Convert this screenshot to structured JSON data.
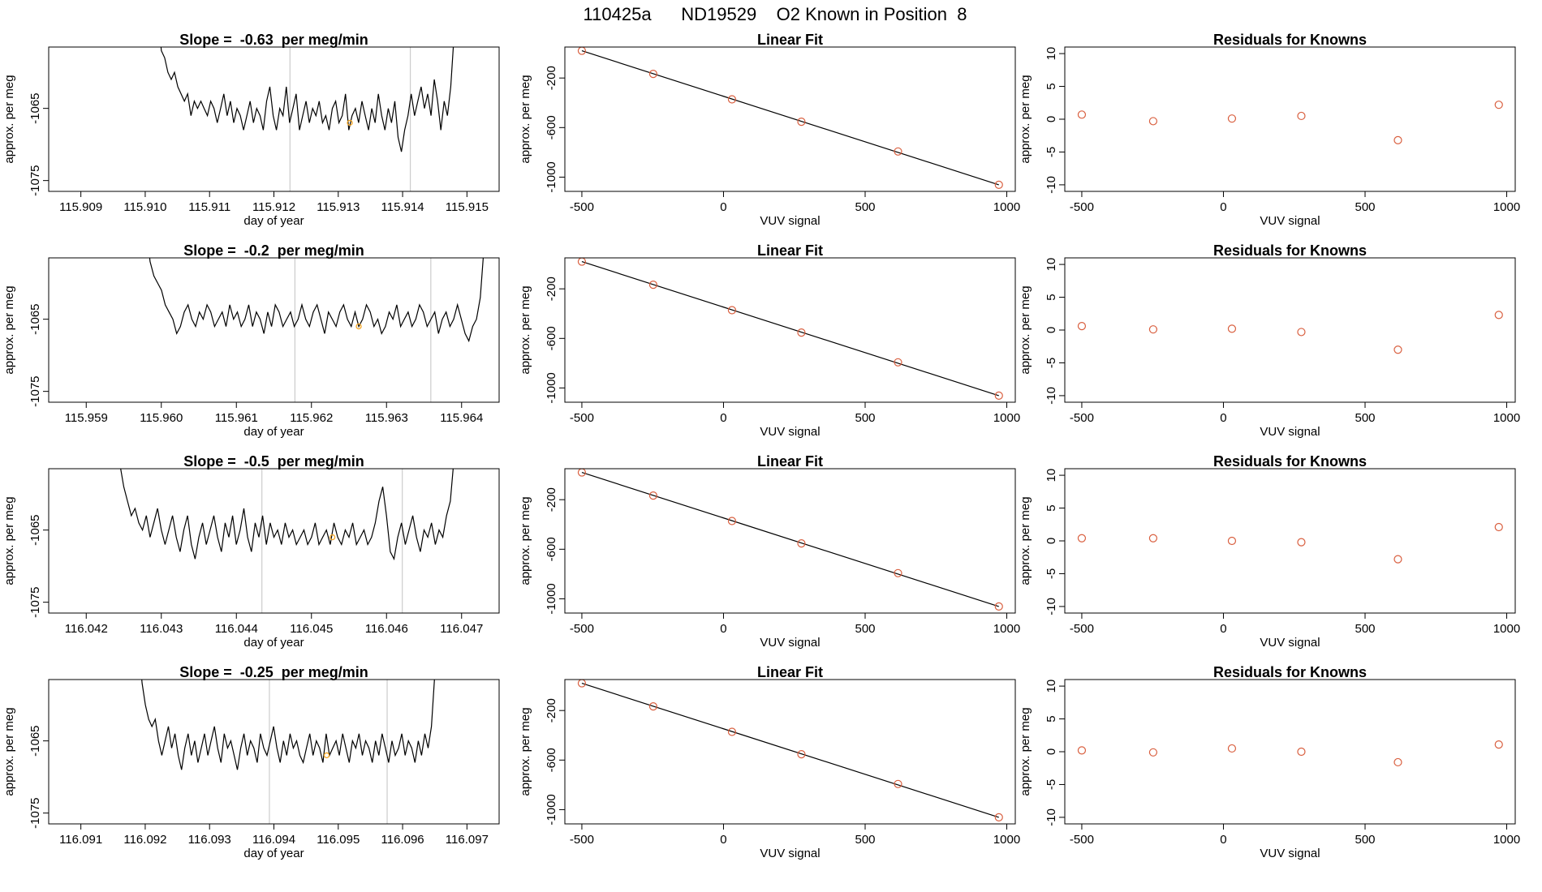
{
  "page_title": "110425a      ND19529    O2 Known in Position  8",
  "colors": {
    "trace": "#000000",
    "point": "#d95f3f",
    "highlight": "#f5a623",
    "vline": "#cccccc",
    "frame": "#000000"
  },
  "chart_data": [
    {
      "type": "line",
      "panel": "timeseries",
      "row": 1,
      "title": "Slope =  -0.63  per meg/min",
      "xlabel": "day of year",
      "ylabel": "approx. per meg",
      "xlim": [
        115.9085,
        115.9155
      ],
      "ylim": [
        -1076.5,
        -1056.5
      ],
      "xticks": [
        "115.909",
        "115.910",
        "115.911",
        "115.912",
        "115.913",
        "115.914",
        "115.915"
      ],
      "yticks": [
        "-1065",
        "-1075"
      ],
      "grid": false,
      "vlines": [
        115.91225,
        115.91412
      ],
      "highlight": {
        "x": 115.91318,
        "y": -1067
      },
      "trace": {
        "x_start": 115.9102,
        "x_end": 115.91485,
        "values": [
          -1052,
          -1057,
          -1058,
          -1060,
          -1061,
          -1060,
          -1062,
          -1063,
          -1064,
          -1063,
          -1066,
          -1064,
          -1065,
          -1064,
          -1065,
          -1066,
          -1064,
          -1065,
          -1067,
          -1065,
          -1063,
          -1066,
          -1064,
          -1067,
          -1065,
          -1066,
          -1068,
          -1066,
          -1064,
          -1067,
          -1065,
          -1066,
          -1068,
          -1064,
          -1062,
          -1066,
          -1068,
          -1065,
          -1066,
          -1062,
          -1067,
          -1065,
          -1063,
          -1068,
          -1066,
          -1064,
          -1067,
          -1065,
          -1066,
          -1064,
          -1067,
          -1066,
          -1068,
          -1065,
          -1064,
          -1067,
          -1066,
          -1063,
          -1068,
          -1066,
          -1065,
          -1067,
          -1064,
          -1066,
          -1068,
          -1065,
          -1067,
          -1063,
          -1066,
          -1068,
          -1065,
          -1067,
          -1064,
          -1069,
          -1071,
          -1068,
          -1066,
          -1063,
          -1066,
          -1064,
          -1062,
          -1065,
          -1063,
          -1066,
          -1061,
          -1064,
          -1068,
          -1064,
          -1066,
          -1062,
          -1055,
          -1052
        ]
      }
    },
    {
      "type": "line",
      "panel": "timeseries",
      "row": 2,
      "title": "Slope =  -0.2  per meg/min",
      "xlabel": "day of year",
      "ylabel": "approx. per meg",
      "xlim": [
        115.9585,
        115.9645
      ],
      "ylim": [
        -1076.5,
        -1056.5
      ],
      "xticks": [
        "115.959",
        "115.960",
        "115.961",
        "115.962",
        "115.963",
        "115.964"
      ],
      "yticks": [
        "-1065",
        "-1075"
      ],
      "grid": false,
      "vlines": [
        115.96178,
        115.96359
      ],
      "highlight": {
        "x": 115.96263,
        "y": -1066
      },
      "trace": {
        "x_start": 115.9598,
        "x_end": 115.96435,
        "values": [
          -1052,
          -1057,
          -1059,
          -1060,
          -1061,
          -1063,
          -1064,
          -1065,
          -1067,
          -1066,
          -1064,
          -1063,
          -1065,
          -1066,
          -1064,
          -1065,
          -1063,
          -1064,
          -1066,
          -1065,
          -1064,
          -1066,
          -1063,
          -1065,
          -1064,
          -1066,
          -1065,
          -1063,
          -1066,
          -1064,
          -1065,
          -1067,
          -1064,
          -1066,
          -1063,
          -1064,
          -1066,
          -1065,
          -1064,
          -1066,
          -1065,
          -1063,
          -1065,
          -1066,
          -1064,
          -1063,
          -1065,
          -1067,
          -1064,
          -1065,
          -1066,
          -1064,
          -1063,
          -1065,
          -1066,
          -1064,
          -1066,
          -1065,
          -1063,
          -1064,
          -1066,
          -1065,
          -1067,
          -1066,
          -1064,
          -1065,
          -1063,
          -1066,
          -1065,
          -1064,
          -1066,
          -1065,
          -1063,
          -1064,
          -1066,
          -1065,
          -1064,
          -1067,
          -1065,
          -1064,
          -1066,
          -1065,
          -1063,
          -1065,
          -1067,
          -1068,
          -1066,
          -1065,
          -1062,
          -1055,
          -1052
        ]
      }
    },
    {
      "type": "line",
      "panel": "timeseries",
      "row": 3,
      "title": "Slope =  -0.5  per meg/min",
      "xlabel": "day of year",
      "ylabel": "approx. per meg",
      "xlim": [
        116.0415,
        116.0475
      ],
      "ylim": [
        -1076.5,
        -1056.5
      ],
      "xticks": [
        "116.042",
        "116.043",
        "116.044",
        "116.045",
        "116.046",
        "116.047"
      ],
      "yticks": [
        "-1065",
        "-1075"
      ],
      "grid": false,
      "vlines": [
        116.04434,
        116.04621
      ],
      "highlight": {
        "x": 116.04528,
        "y": -1066
      },
      "trace": {
        "x_start": 116.0424,
        "x_end": 116.04695,
        "values": [
          -1052,
          -1056,
          -1059,
          -1061,
          -1063,
          -1062,
          -1064,
          -1065,
          -1063,
          -1066,
          -1064,
          -1062,
          -1065,
          -1067,
          -1065,
          -1063,
          -1066,
          -1068,
          -1065,
          -1063,
          -1067,
          -1069,
          -1066,
          -1064,
          -1067,
          -1065,
          -1063,
          -1066,
          -1068,
          -1064,
          -1066,
          -1063,
          -1067,
          -1065,
          -1062,
          -1066,
          -1068,
          -1064,
          -1066,
          -1063,
          -1067,
          -1064,
          -1066,
          -1065,
          -1067,
          -1064,
          -1066,
          -1065,
          -1067,
          -1066,
          -1065,
          -1067,
          -1066,
          -1064,
          -1067,
          -1066,
          -1065,
          -1067,
          -1064,
          -1066,
          -1067,
          -1065,
          -1066,
          -1064,
          -1067,
          -1066,
          -1065,
          -1067,
          -1066,
          -1064,
          -1061,
          -1059,
          -1063,
          -1068,
          -1069,
          -1066,
          -1064,
          -1067,
          -1065,
          -1063,
          -1066,
          -1068,
          -1065,
          -1066,
          -1064,
          -1067,
          -1065,
          -1066,
          -1063,
          -1061,
          -1055,
          -1052
        ]
      }
    },
    {
      "type": "line",
      "panel": "timeseries",
      "row": 4,
      "title": "Slope =  -0.25  per meg/min",
      "xlabel": "day of year",
      "ylabel": "approx. per meg",
      "xlim": [
        116.0905,
        116.0975
      ],
      "ylim": [
        -1076.5,
        -1056.5
      ],
      "xticks": [
        "116.091",
        "116.092",
        "116.093",
        "116.094",
        "116.095",
        "116.096",
        "116.097"
      ],
      "yticks": [
        "-1065",
        "-1075"
      ],
      "grid": false,
      "vlines": [
        116.09393,
        116.09576
      ],
      "highlight": {
        "x": 116.09482,
        "y": -1067
      },
      "trace": {
        "x_start": 116.0919,
        "x_end": 116.09655,
        "values": [
          -1052,
          -1057,
          -1060,
          -1062,
          -1063,
          -1062,
          -1065,
          -1067,
          -1065,
          -1063,
          -1066,
          -1064,
          -1067,
          -1069,
          -1066,
          -1064,
          -1067,
          -1065,
          -1068,
          -1066,
          -1064,
          -1067,
          -1065,
          -1063,
          -1066,
          -1068,
          -1064,
          -1066,
          -1065,
          -1067,
          -1069,
          -1066,
          -1064,
          -1067,
          -1065,
          -1066,
          -1068,
          -1064,
          -1066,
          -1067,
          -1065,
          -1063,
          -1066,
          -1068,
          -1065,
          -1067,
          -1064,
          -1066,
          -1065,
          -1067,
          -1068,
          -1066,
          -1064,
          -1067,
          -1065,
          -1066,
          -1068,
          -1064,
          -1067,
          -1066,
          -1065,
          -1067,
          -1064,
          -1066,
          -1068,
          -1065,
          -1066,
          -1064,
          -1067,
          -1065,
          -1066,
          -1068,
          -1065,
          -1067,
          -1064,
          -1066,
          -1068,
          -1065,
          -1067,
          -1066,
          -1064,
          -1067,
          -1065,
          -1066,
          -1068,
          -1065,
          -1067,
          -1064,
          -1066,
          -1063,
          -1056,
          -1052
        ]
      }
    },
    {
      "type": "scatter",
      "panel": "fit",
      "row": 1,
      "title": "Linear Fit",
      "xlabel": "VUV signal",
      "ylabel": "approx. per meg",
      "xlim": [
        -560,
        1030
      ],
      "ylim": [
        -1115,
        50
      ],
      "xticks": [
        "-500",
        "0",
        "500",
        "1000"
      ],
      "yticks": [
        "-200",
        "-600",
        "-1000"
      ],
      "grid": false,
      "x": [
        -500,
        -248,
        30,
        275,
        616,
        972
      ],
      "y": [
        20,
        -167,
        -372,
        -553,
        -793,
        -1062
      ],
      "fit_line": {
        "x": [
          -500,
          972
        ],
        "y": [
          20,
          -1062
        ]
      }
    },
    {
      "type": "scatter",
      "panel": "fit",
      "row": 2,
      "title": "Linear Fit",
      "xlabel": "VUV signal",
      "ylabel": "approx. per meg",
      "xlim": [
        -560,
        1030
      ],
      "ylim": [
        -1115,
        50
      ],
      "xticks": [
        "-500",
        "0",
        "500",
        "1000"
      ],
      "yticks": [
        "-200",
        "-600",
        "-1000"
      ],
      "grid": false,
      "x": [
        -500,
        -248,
        30,
        275,
        616,
        972
      ],
      "y": [
        20,
        -167,
        -372,
        -553,
        -793,
        -1062
      ],
      "fit_line": {
        "x": [
          -500,
          972
        ],
        "y": [
          20,
          -1062
        ]
      }
    },
    {
      "type": "scatter",
      "panel": "fit",
      "row": 3,
      "title": "Linear Fit",
      "xlabel": "VUV signal",
      "ylabel": "approx. per meg",
      "xlim": [
        -560,
        1030
      ],
      "ylim": [
        -1115,
        50
      ],
      "xticks": [
        "-500",
        "0",
        "500",
        "1000"
      ],
      "yticks": [
        "-200",
        "-600",
        "-1000"
      ],
      "grid": false,
      "x": [
        -500,
        -248,
        30,
        275,
        616,
        972
      ],
      "y": [
        20,
        -167,
        -372,
        -553,
        -793,
        -1062
      ],
      "fit_line": {
        "x": [
          -500,
          972
        ],
        "y": [
          20,
          -1062
        ]
      }
    },
    {
      "type": "scatter",
      "panel": "fit",
      "row": 4,
      "title": "Linear Fit",
      "xlabel": "VUV signal",
      "ylabel": "approx. per meg",
      "xlim": [
        -560,
        1030
      ],
      "ylim": [
        -1115,
        50
      ],
      "xticks": [
        "-500",
        "0",
        "500",
        "1000"
      ],
      "yticks": [
        "-200",
        "-600",
        "-1000"
      ],
      "grid": false,
      "x": [
        -500,
        -248,
        30,
        275,
        616,
        972
      ],
      "y": [
        20,
        -167,
        -372,
        -553,
        -793,
        -1062
      ],
      "fit_line": {
        "x": [
          -500,
          972
        ],
        "y": [
          20,
          -1062
        ]
      }
    },
    {
      "type": "scatter",
      "panel": "residuals",
      "row": 1,
      "title": "Residuals for Knowns",
      "xlabel": "VUV signal",
      "ylabel": "approx. per meg",
      "xlim": [
        -560,
        1030
      ],
      "ylim": [
        -11,
        11
      ],
      "xticks": [
        "-500",
        "0",
        "500",
        "1000"
      ],
      "yticks": [
        "10",
        "5",
        "0",
        "-5",
        "-10"
      ],
      "grid": false,
      "x": [
        -500,
        -248,
        30,
        275,
        616,
        972
      ],
      "y": [
        0.7,
        -0.3,
        0.1,
        0.5,
        -3.2,
        2.2
      ]
    },
    {
      "type": "scatter",
      "panel": "residuals",
      "row": 2,
      "title": "Residuals for Knowns",
      "xlabel": "VUV signal",
      "ylabel": "approx. per meg",
      "xlim": [
        -560,
        1030
      ],
      "ylim": [
        -11,
        11
      ],
      "xticks": [
        "-500",
        "0",
        "500",
        "1000"
      ],
      "yticks": [
        "10",
        "5",
        "0",
        "-5",
        "-10"
      ],
      "grid": false,
      "x": [
        -500,
        -248,
        30,
        275,
        616,
        972
      ],
      "y": [
        0.6,
        0.1,
        0.2,
        -0.3,
        -3.0,
        2.3
      ]
    },
    {
      "type": "scatter",
      "panel": "residuals",
      "row": 3,
      "title": "Residuals for Knowns",
      "xlabel": "VUV signal",
      "ylabel": "approx. per meg",
      "xlim": [
        -560,
        1030
      ],
      "ylim": [
        -11,
        11
      ],
      "xticks": [
        "-500",
        "0",
        "500",
        "1000"
      ],
      "yticks": [
        "10",
        "5",
        "0",
        "-5",
        "-10"
      ],
      "grid": false,
      "x": [
        -500,
        -248,
        30,
        275,
        616,
        972
      ],
      "y": [
        0.4,
        0.4,
        0.0,
        -0.2,
        -2.8,
        2.1
      ]
    },
    {
      "type": "scatter",
      "panel": "residuals",
      "row": 4,
      "title": "Residuals for Knowns",
      "xlabel": "VUV signal",
      "ylabel": "approx. per meg",
      "xlim": [
        -560,
        1030
      ],
      "ylim": [
        -11,
        11
      ],
      "xticks": [
        "-500",
        "0",
        "500",
        "1000"
      ],
      "yticks": [
        "10",
        "5",
        "0",
        "-5",
        "-10"
      ],
      "grid": false,
      "x": [
        -500,
        -248,
        30,
        275,
        616,
        972
      ],
      "y": [
        0.2,
        -0.1,
        0.5,
        0.0,
        -1.6,
        1.1
      ]
    }
  ]
}
